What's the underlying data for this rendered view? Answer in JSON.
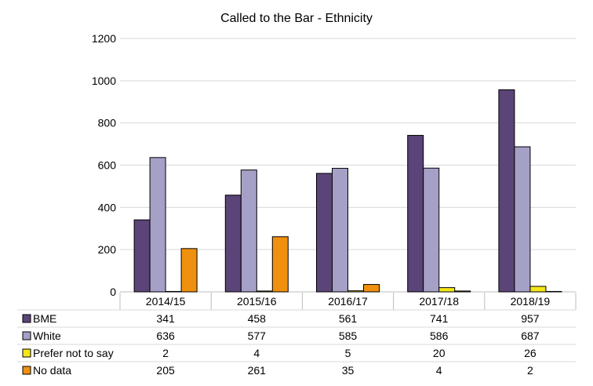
{
  "chart_data": {
    "type": "bar",
    "title": "Called to the Bar - Ethnicity",
    "categories": [
      "2014/15",
      "2015/16",
      "2016/17",
      "2017/18",
      "2018/19"
    ],
    "ylim": [
      0,
      1200
    ],
    "yticks": [
      0,
      200,
      400,
      600,
      800,
      1000,
      1200
    ],
    "grid": true,
    "legend": "data-table-left",
    "series": [
      {
        "name": "BME",
        "color": "#5b4478",
        "values": [
          341,
          458,
          561,
          741,
          957
        ]
      },
      {
        "name": "White",
        "color": "#a5a0c6",
        "values": [
          636,
          577,
          585,
          586,
          687
        ]
      },
      {
        "name": "Prefer not to say",
        "color": "#f5e617",
        "values": [
          2,
          4,
          5,
          20,
          26
        ]
      },
      {
        "name": "No data",
        "color": "#f0900f",
        "values": [
          205,
          261,
          35,
          4,
          2
        ]
      }
    ]
  }
}
